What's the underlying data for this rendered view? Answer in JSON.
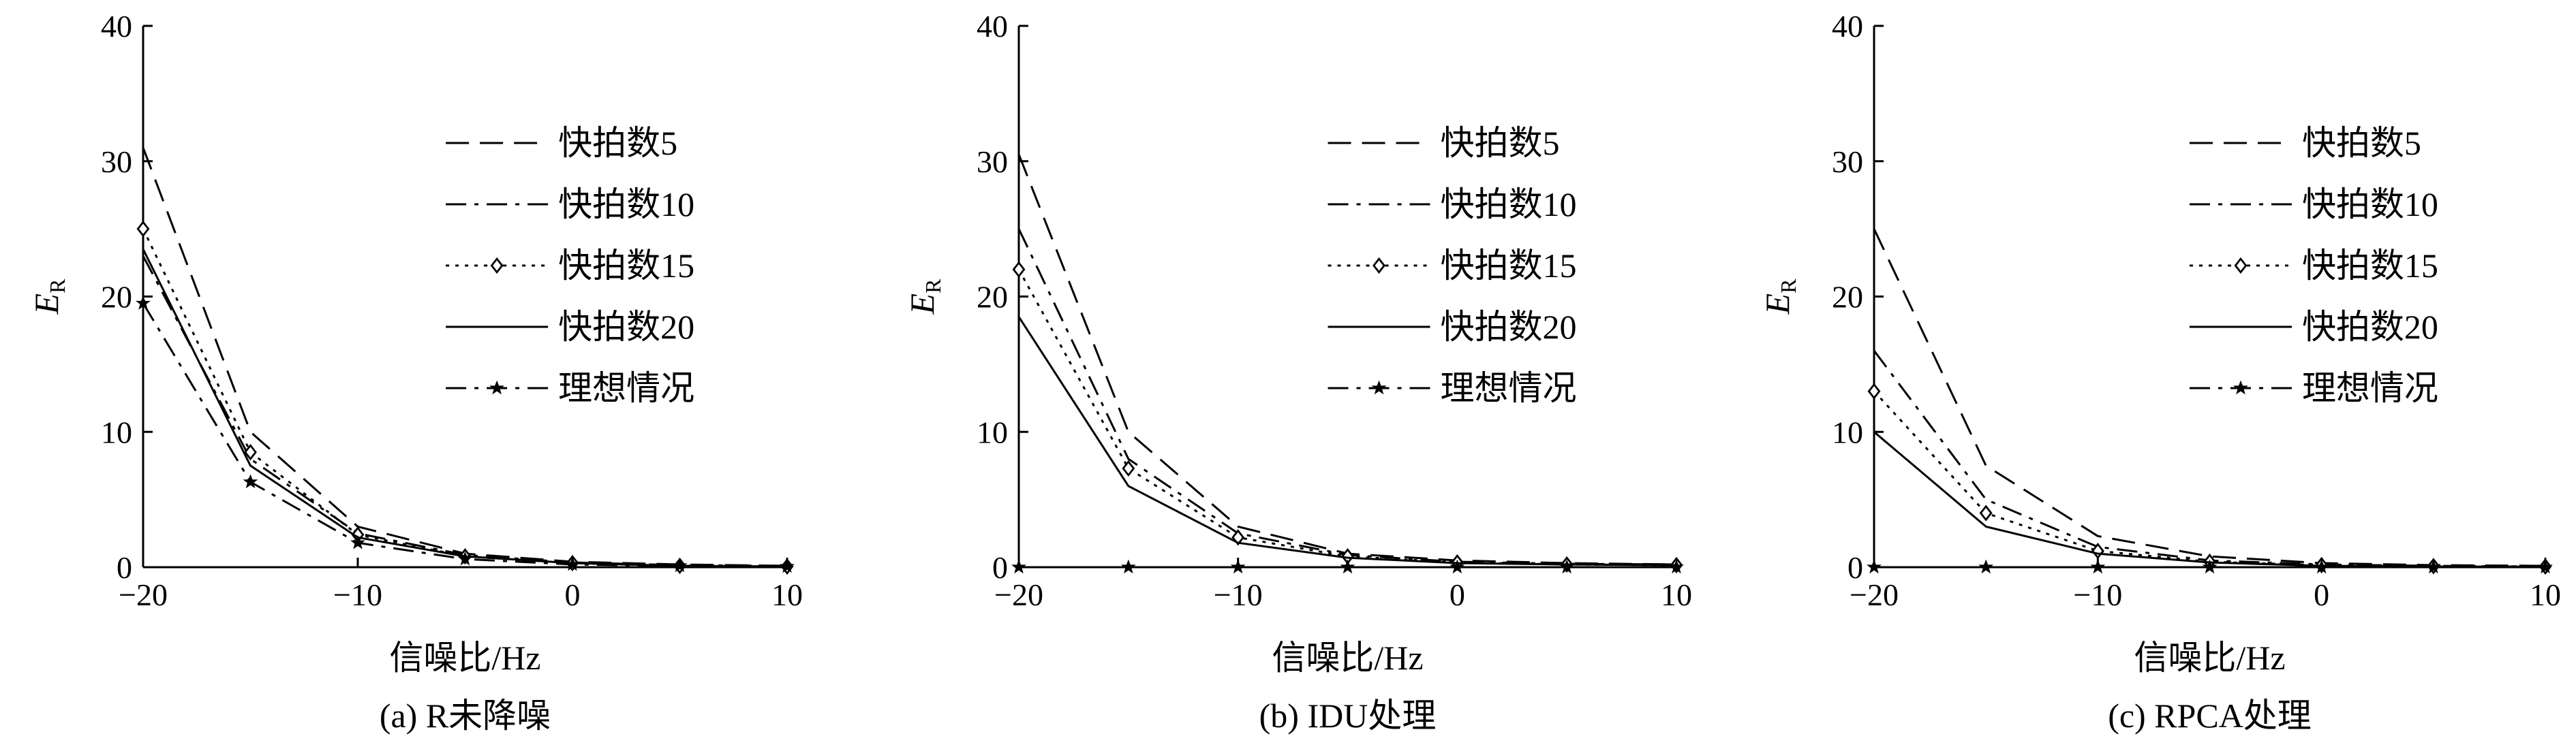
{
  "chart_data": [
    {
      "type": "line",
      "caption": "(a) R未降噪",
      "xlabel": "信噪比/Hz",
      "ylabel": {
        "main": "E",
        "sub": "R"
      },
      "xlim": [
        -20,
        10
      ],
      "ylim": [
        0,
        40
      ],
      "xticks": [
        "-20",
        "-10",
        "0",
        "10"
      ],
      "yticks": [
        "0",
        "10",
        "20",
        "30",
        "40"
      ],
      "x": [
        -20,
        -15,
        -10,
        -5,
        0,
        5,
        10
      ],
      "legend_position": "top-right",
      "series": [
        {
          "name": "快拍数5",
          "style": "dashed",
          "marker": "none",
          "values": [
            31,
            10,
            3,
            1,
            0.4,
            0.2,
            0.1
          ]
        },
        {
          "name": "快拍数10",
          "style": "dashdot",
          "marker": "none",
          "values": [
            23,
            8,
            2.5,
            0.9,
            0.35,
            0.15,
            0.1
          ]
        },
        {
          "name": "快拍数15",
          "style": "dotted",
          "marker": "diamond",
          "values": [
            25,
            8.5,
            2.4,
            0.8,
            0.3,
            0.1,
            0.05
          ]
        },
        {
          "name": "快拍数20",
          "style": "solid",
          "marker": "none",
          "values": [
            23.5,
            7.5,
            2.2,
            0.8,
            0.3,
            0.1,
            0.05
          ]
        },
        {
          "name": "理想情况",
          "style": "dashdot",
          "marker": "star",
          "values": [
            19.5,
            6.3,
            1.8,
            0.6,
            0.2,
            0.1,
            0.05
          ]
        }
      ]
    },
    {
      "type": "line",
      "caption": "(b) IDU处理",
      "xlabel": "信噪比/Hz",
      "ylabel": {
        "main": "E",
        "sub": "R"
      },
      "xlim": [
        -20,
        10
      ],
      "ylim": [
        0,
        40
      ],
      "xticks": [
        "-20",
        "-10",
        "0",
        "10"
      ],
      "yticks": [
        "0",
        "10",
        "20",
        "30",
        "40"
      ],
      "x": [
        -20,
        -15,
        -10,
        -5,
        0,
        5,
        10
      ],
      "legend_position": "top-right",
      "series": [
        {
          "name": "快拍数5",
          "style": "dashed",
          "marker": "none",
          "values": [
            30.5,
            10,
            3,
            1,
            0.5,
            0.3,
            0.2
          ]
        },
        {
          "name": "快拍数10",
          "style": "dashdot",
          "marker": "none",
          "values": [
            25,
            8,
            2.5,
            0.9,
            0.4,
            0.25,
            0.2
          ]
        },
        {
          "name": "快拍数15",
          "style": "dotted",
          "marker": "diamond",
          "values": [
            22,
            7.3,
            2.2,
            0.8,
            0.35,
            0.2,
            0.15
          ]
        },
        {
          "name": "快拍数20",
          "style": "solid",
          "marker": "none",
          "values": [
            18.5,
            6,
            1.8,
            0.7,
            0.3,
            0.2,
            0.15
          ]
        },
        {
          "name": "理想情况",
          "style": "dashdot",
          "marker": "star",
          "values": [
            0,
            0,
            0,
            0,
            0,
            0,
            0
          ]
        }
      ]
    },
    {
      "type": "line",
      "caption": "(c) RPCA处理",
      "xlabel": "信噪比/Hz",
      "ylabel": {
        "main": "E",
        "sub": "R"
      },
      "xlim": [
        -20,
        10
      ],
      "ylim": [
        0,
        40
      ],
      "xticks": [
        "-20",
        "-10",
        "0",
        "10"
      ],
      "yticks": [
        "0",
        "10",
        "20",
        "30",
        "40"
      ],
      "x": [
        -20,
        -15,
        -10,
        -5,
        0,
        5,
        10
      ],
      "legend_position": "top-right",
      "series": [
        {
          "name": "快拍数5",
          "style": "dashed",
          "marker": "none",
          "values": [
            25,
            7.5,
            2.3,
            0.8,
            0.3,
            0.15,
            0.1
          ]
        },
        {
          "name": "快拍数10",
          "style": "dashdot",
          "marker": "none",
          "values": [
            16,
            5,
            1.5,
            0.5,
            0.2,
            0.1,
            0.05
          ]
        },
        {
          "name": "快拍数15",
          "style": "dotted",
          "marker": "diamond",
          "values": [
            13,
            4,
            1.2,
            0.4,
            0.15,
            0.08,
            0.05
          ]
        },
        {
          "name": "快拍数20",
          "style": "solid",
          "marker": "none",
          "values": [
            10,
            3,
            1,
            0.35,
            0.1,
            0.05,
            0.03
          ]
        },
        {
          "name": "理想情况",
          "style": "dashdot",
          "marker": "star",
          "values": [
            0,
            0,
            0,
            0,
            0,
            0,
            0
          ]
        }
      ]
    }
  ]
}
